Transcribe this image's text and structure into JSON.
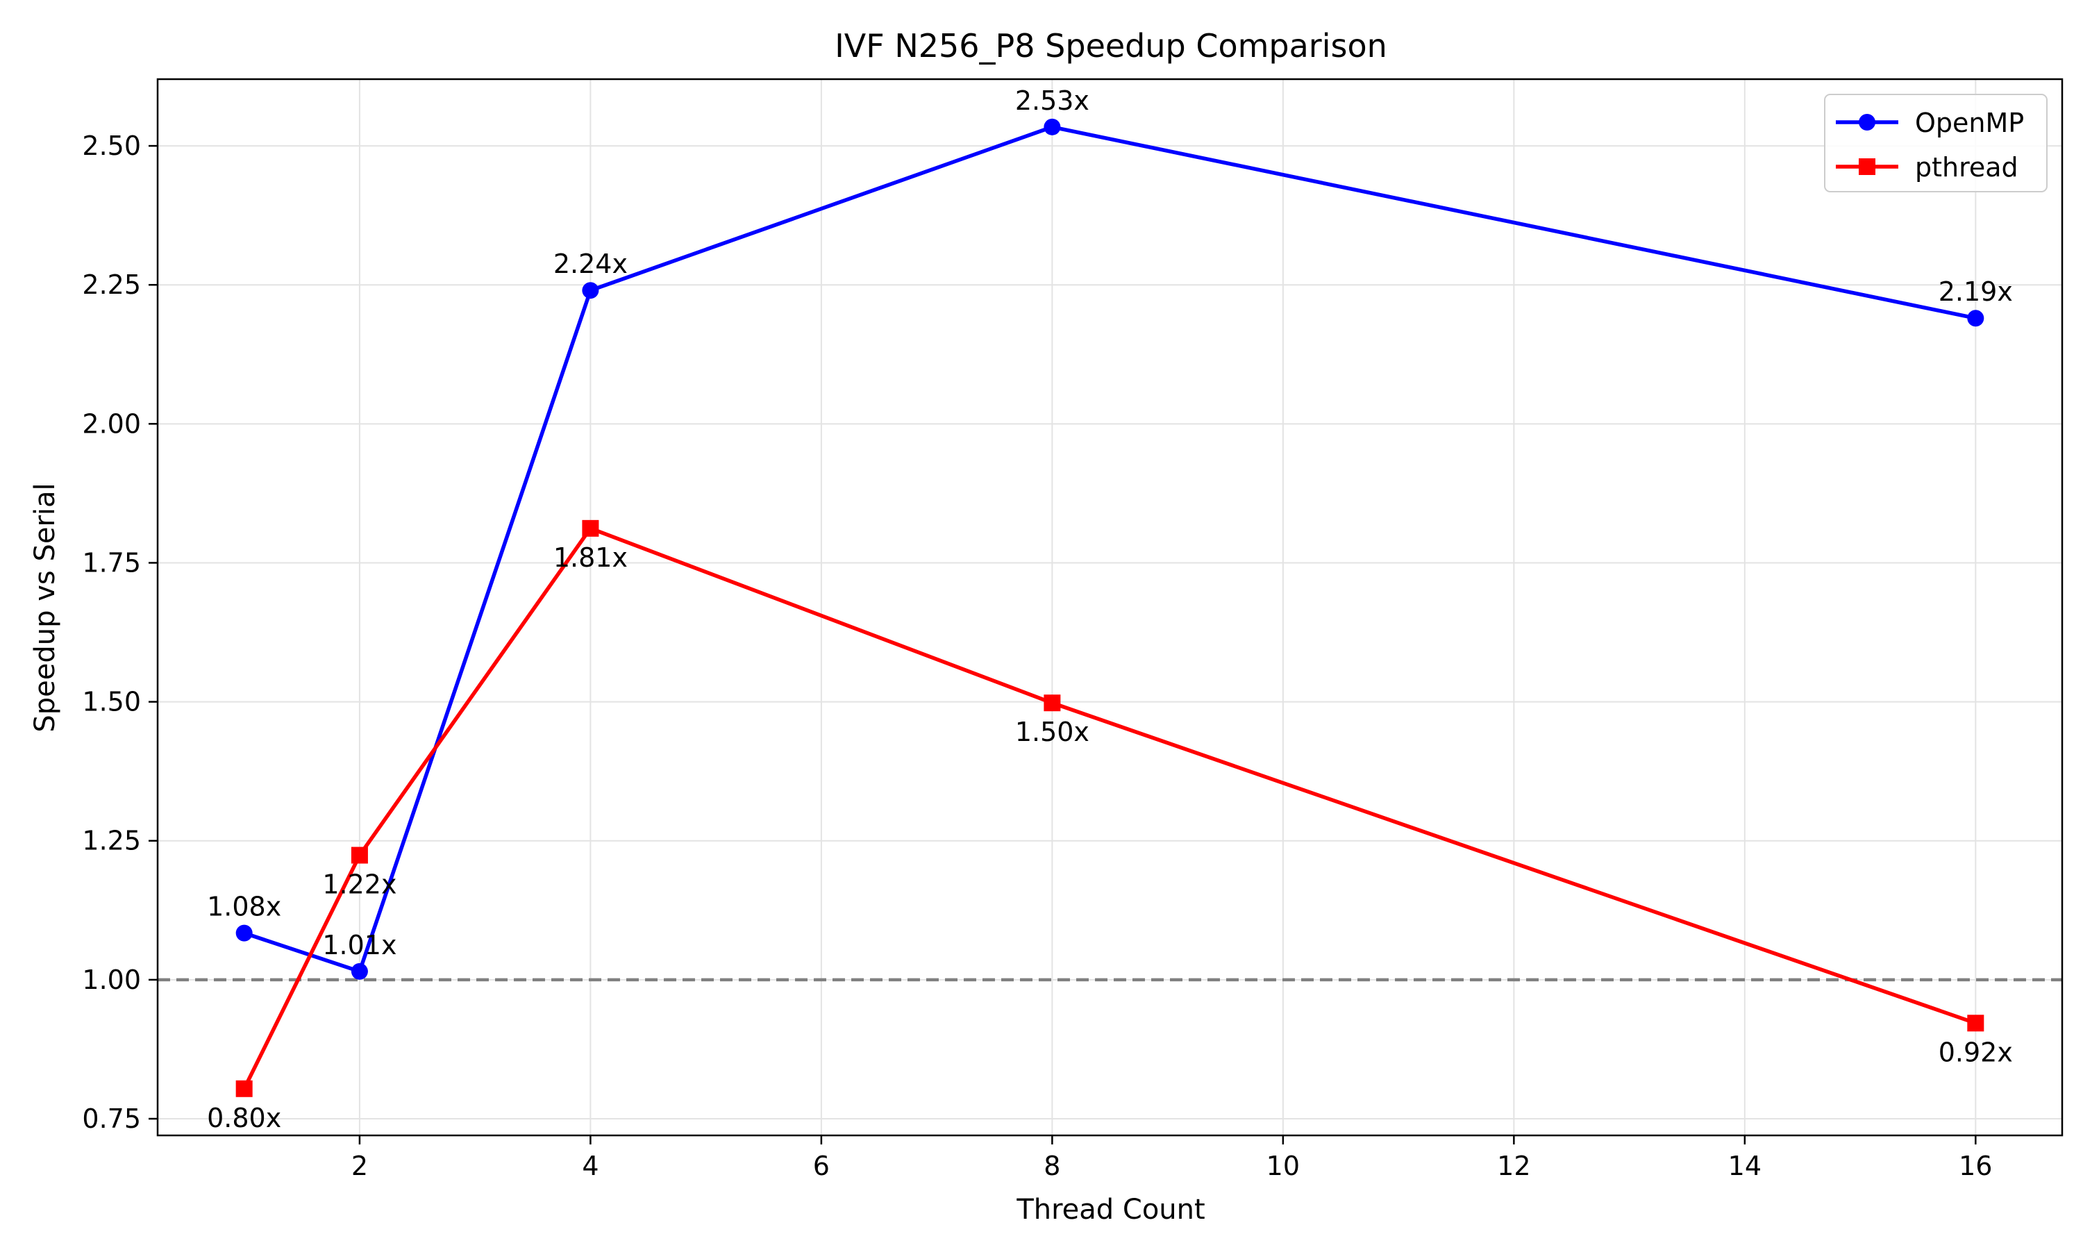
{
  "chart_data": {
    "type": "line",
    "title": "IVF N256_P8 Speedup Comparison",
    "xlabel": "Thread Count",
    "ylabel": "Speedup vs Serial",
    "xlim": [
      0.25,
      16.75
    ],
    "ylim": [
      0.72,
      2.62
    ],
    "xticks": [
      2,
      4,
      6,
      8,
      10,
      12,
      14,
      16
    ],
    "yticks": [
      0.75,
      1.0,
      1.25,
      1.5,
      1.75,
      2.0,
      2.25,
      2.5
    ],
    "grid": true,
    "legend_position": "top-right",
    "reference_line": {
      "y": 1.0,
      "style": "dashed",
      "color": "#808080"
    },
    "series": [
      {
        "name": "OpenMP",
        "color": "#0000ff",
        "marker": "circle",
        "x": [
          1,
          2,
          4,
          8,
          16
        ],
        "y": [
          1.084,
          1.015,
          2.24,
          2.534,
          2.19
        ],
        "labels": [
          "1.08x",
          "1.01x",
          "2.24x",
          "2.53x",
          "2.19x"
        ],
        "label_position": "above"
      },
      {
        "name": "pthread",
        "color": "#ff0000",
        "marker": "square",
        "x": [
          1,
          2,
          4,
          8,
          16
        ],
        "y": [
          0.804,
          1.224,
          1.812,
          1.498,
          0.922
        ],
        "labels": [
          "0.80x",
          "1.22x",
          "1.81x",
          "1.50x",
          "0.92x"
        ],
        "label_position": "below"
      }
    ]
  }
}
